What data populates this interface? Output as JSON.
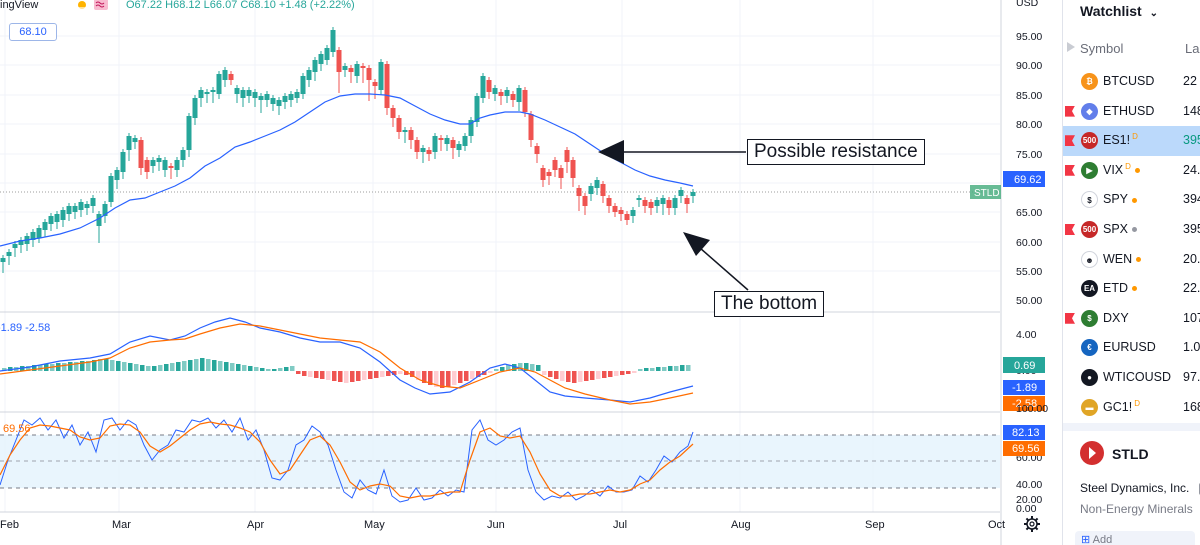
{
  "header": {
    "app_name": "ingView",
    "ohlc": "O67.22  H68.12  L66.07  C68.10  +1.48 (+2.22%)",
    "price_badge": "68.10"
  },
  "price_axis": {
    "labels": [
      "USD",
      "95.00",
      "90.00",
      "85.00",
      "80.00",
      "75.00",
      "70.00",
      "65.00",
      "60.00",
      "55.00",
      "50.00"
    ],
    "current_tag": "69.62",
    "symbol_tag": "STLD"
  },
  "macd": {
    "labels": "-1.89  -2.58",
    "axis_labels": [
      "4.00",
      "0.00",
      "-4.00"
    ],
    "hist_tag": "0.69",
    "macd_tag": "-1.89",
    "signal_tag": "-2.58"
  },
  "stoch": {
    "label": "69.56",
    "axis_labels": [
      "100.00",
      "80.00",
      "60.00",
      "40.00",
      "20.00",
      "0.00"
    ],
    "k_tag": "82.13",
    "d_tag": "69.56"
  },
  "time_axis": {
    "labels": [
      "Feb",
      "Mar",
      "Apr",
      "May",
      "Jun",
      "Jul",
      "Aug",
      "Sep",
      "Oct"
    ]
  },
  "annotations": {
    "resistance": "Possible resistance",
    "bottom": "The bottom"
  },
  "watchlist": {
    "title": "Watchlist",
    "col_symbol": "Symbol",
    "col_last": "La",
    "rows": [
      {
        "symbol": "BTCUSD",
        "last": "22",
        "flag": false,
        "icon_color": "#f7931a",
        "icon_text": "₿",
        "sup": "",
        "dot": ""
      },
      {
        "symbol": "ETHUSD",
        "last": "148",
        "flag": true,
        "icon_color": "#627eea",
        "icon_text": "◆",
        "sup": "",
        "dot": ""
      },
      {
        "symbol": "ES1!",
        "last": "395",
        "flag": true,
        "icon_color": "#c62828",
        "icon_text": "500",
        "sup": "D",
        "dot": "",
        "selected": true
      },
      {
        "symbol": "VIX",
        "last": "24.",
        "flag": true,
        "icon_color": "#2e7d32",
        "icon_text": "▶",
        "sup": "D",
        "dot": "#ff9800"
      },
      {
        "symbol": "SPY",
        "last": "394",
        "flag": false,
        "icon_color": "#ffffff",
        "icon_text": "$",
        "sup": "",
        "dot": "#ff9800"
      },
      {
        "symbol": "SPX",
        "last": "395",
        "flag": true,
        "icon_color": "#c62828",
        "icon_text": "500",
        "sup": "",
        "dot": "#9598a1"
      },
      {
        "symbol": "WEN",
        "last": "20.",
        "flag": false,
        "icon_color": "#ffffff",
        "icon_text": "☻",
        "sup": "",
        "dot": "#ff9800"
      },
      {
        "symbol": "ETD",
        "last": "22.",
        "flag": false,
        "icon_color": "#131722",
        "icon_text": "EA",
        "sup": "",
        "dot": "#ff9800"
      },
      {
        "symbol": "DXY",
        "last": "107",
        "flag": true,
        "icon_color": "#2e7d32",
        "icon_text": "$",
        "sup": "",
        "dot": ""
      },
      {
        "symbol": "EURUSD",
        "last": "1.0",
        "flag": false,
        "icon_color": "#1565c0",
        "icon_text": "€",
        "sup": "",
        "dot": ""
      },
      {
        "symbol": "WTICOUSD",
        "last": "97.",
        "flag": false,
        "icon_color": "#131722",
        "icon_text": "●",
        "sup": "",
        "dot": ""
      },
      {
        "symbol": "GC1!",
        "last": "168",
        "flag": false,
        "icon_color": "#e0a526",
        "icon_text": "▬",
        "sup": "D",
        "dot": ""
      }
    ]
  },
  "details": {
    "symbol": "STLD",
    "company": "Steel Dynamics, Inc.",
    "company_badge": "E",
    "sector": "Non-Energy Minerals",
    "sector_badge": "E",
    "add_label": "Add"
  },
  "colors": {
    "up": "#26a69a",
    "down": "#ef5350",
    "ma": "#2962ff",
    "signal": "#ff6d00",
    "band": "#e3f2fd"
  }
}
